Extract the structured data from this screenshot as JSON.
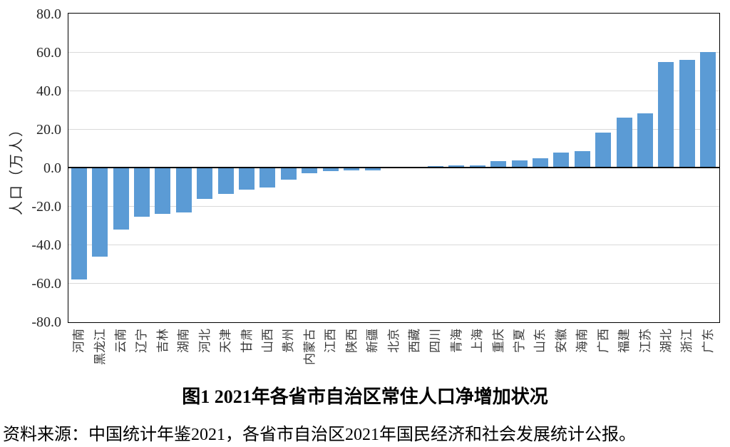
{
  "figure": {
    "caption": "图1  2021年各省市自治区常住人口净增加状况",
    "source": "资料来源：中国统计年鉴2021，各省市自治区2021年国民经济和社会发展统计公报。"
  },
  "chart_data": {
    "type": "bar",
    "title": "图1  2021年各省市自治区常住人口净增加状况",
    "xlabel": "",
    "ylabel": "人口（万人）",
    "ylim": [
      -80,
      80
    ],
    "ytick_step": 20,
    "ytick_labels": [
      "80.0",
      "60.0",
      "40.0",
      "20.0",
      "0.0",
      "-20.0",
      "-40.0",
      "-60.0",
      "-80.0"
    ],
    "grid": "horizontal",
    "legend_position": "none",
    "bar_color": "#5B9BD5",
    "gridline_color": "#D9D9D9",
    "axis_color": "#000000",
    "categories": [
      "河南",
      "黑龙江",
      "云南",
      "辽宁",
      "吉林",
      "湖南",
      "河北",
      "天津",
      "甘肃",
      "山西",
      "贵州",
      "内蒙古",
      "江西",
      "陕西",
      "新疆",
      "北京",
      "西藏",
      "四川",
      "青海",
      "上海",
      "重庆",
      "宁夏",
      "山东",
      "安徽",
      "海南",
      "广西",
      "福建",
      "江苏",
      "湖北",
      "浙江",
      "广东"
    ],
    "values": [
      -58.0,
      -46.2,
      -32.4,
      -25.6,
      -24.1,
      -23.3,
      -16.2,
      -13.6,
      -11.6,
      -10.2,
      -6.3,
      -2.8,
      -1.7,
      -1.5,
      -1.4,
      -0.4,
      0.0,
      0.8,
      1.0,
      1.1,
      3.5,
      3.8,
      4.7,
      7.9,
      8.4,
      18.0,
      26.0,
      28.1,
      54.7,
      56.0,
      60.0
    ]
  }
}
